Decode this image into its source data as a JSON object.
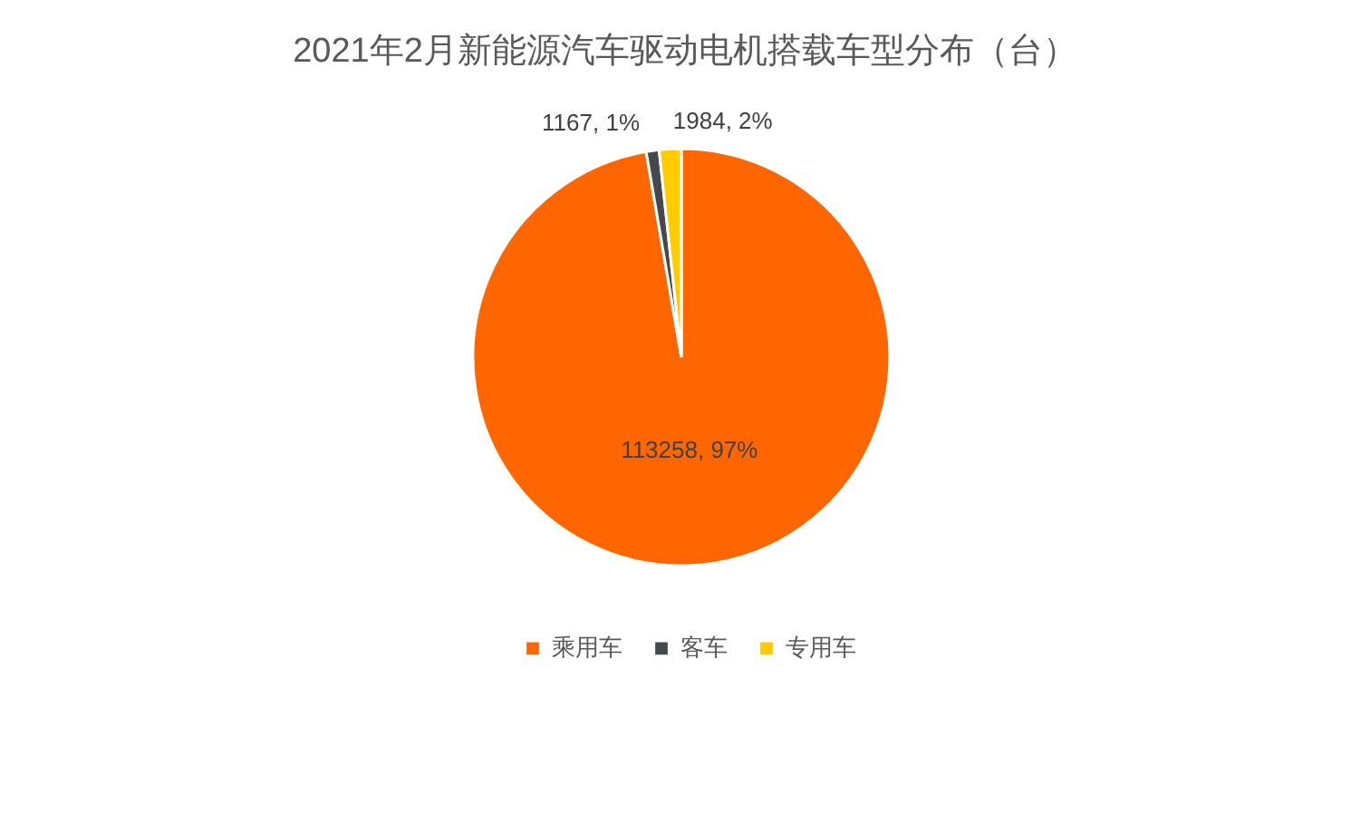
{
  "chart_data": {
    "type": "pie",
    "title": "2021年2月新能源汽车驱动电机搭载车型分布（台）",
    "categories": [
      "乘用车",
      "客车",
      "专用车"
    ],
    "values": [
      113258,
      1167,
      1984
    ],
    "colors": [
      "#ff6600",
      "#44494d",
      "#ffcc00"
    ],
    "value_labels": [
      "113258, 97%",
      "1167, 1%",
      "1984, 2%"
    ],
    "legend": "bottom"
  }
}
